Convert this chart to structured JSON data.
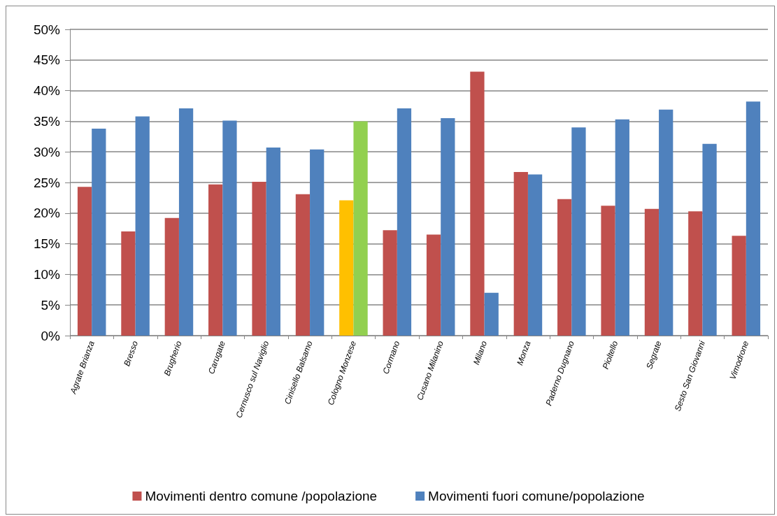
{
  "chart_data": {
    "type": "bar",
    "categories": [
      "Agrate Brianza",
      "Bresso",
      "Brugherio",
      "Carugate",
      "Cernusco sul Naviglio",
      "Cinisello Balsamo",
      "Cologno Monzese",
      "Cormano",
      "Cusano Milanino",
      "Milano",
      "Monza",
      "Paderno Dugnano",
      "Pioltello",
      "Segrate",
      "Sesto San Giovanni",
      "Vimodrone"
    ],
    "series": [
      {
        "name": "Movimenti dentro comune /popolazione",
        "color": "#c0504d",
        "colors": [
          "#c0504d",
          "#c0504d",
          "#c0504d",
          "#c0504d",
          "#c0504d",
          "#c0504d",
          "#ffc000",
          "#c0504d",
          "#c0504d",
          "#c0504d",
          "#c0504d",
          "#c0504d",
          "#c0504d",
          "#c0504d",
          "#c0504d",
          "#c0504d"
        ],
        "values": [
          24.3,
          17.0,
          19.2,
          24.7,
          25.1,
          23.1,
          22.1,
          17.2,
          16.5,
          43.1,
          26.7,
          22.3,
          21.2,
          20.7,
          20.3,
          16.3
        ]
      },
      {
        "name": "Movimenti fuori comune/popolazione",
        "color": "#4f81bd",
        "colors": [
          "#4f81bd",
          "#4f81bd",
          "#4f81bd",
          "#4f81bd",
          "#4f81bd",
          "#4f81bd",
          "#92d050",
          "#4f81bd",
          "#4f81bd",
          "#4f81bd",
          "#4f81bd",
          "#4f81bd",
          "#4f81bd",
          "#4f81bd",
          "#4f81bd",
          "#4f81bd"
        ],
        "values": [
          33.8,
          35.8,
          37.1,
          35.1,
          30.7,
          30.4,
          35.0,
          37.1,
          35.5,
          7.0,
          26.3,
          34.0,
          35.3,
          36.9,
          31.3,
          38.2
        ]
      }
    ],
    "ylim": [
      0,
      50
    ],
    "yticks": [
      {
        "value": 0,
        "label": "0%"
      },
      {
        "value": 5,
        "label": "5%"
      },
      {
        "value": 10,
        "label": "10%"
      },
      {
        "value": 15,
        "label": "15%"
      },
      {
        "value": 20,
        "label": "20%"
      },
      {
        "value": 25,
        "label": "25%"
      },
      {
        "value": 30,
        "label": "30%"
      },
      {
        "value": 35,
        "label": "35%"
      },
      {
        "value": 40,
        "label": "40%"
      },
      {
        "value": 45,
        "label": "45%"
      },
      {
        "value": 50,
        "label": "50%"
      }
    ],
    "grid": "y",
    "legend": "bottom"
  }
}
